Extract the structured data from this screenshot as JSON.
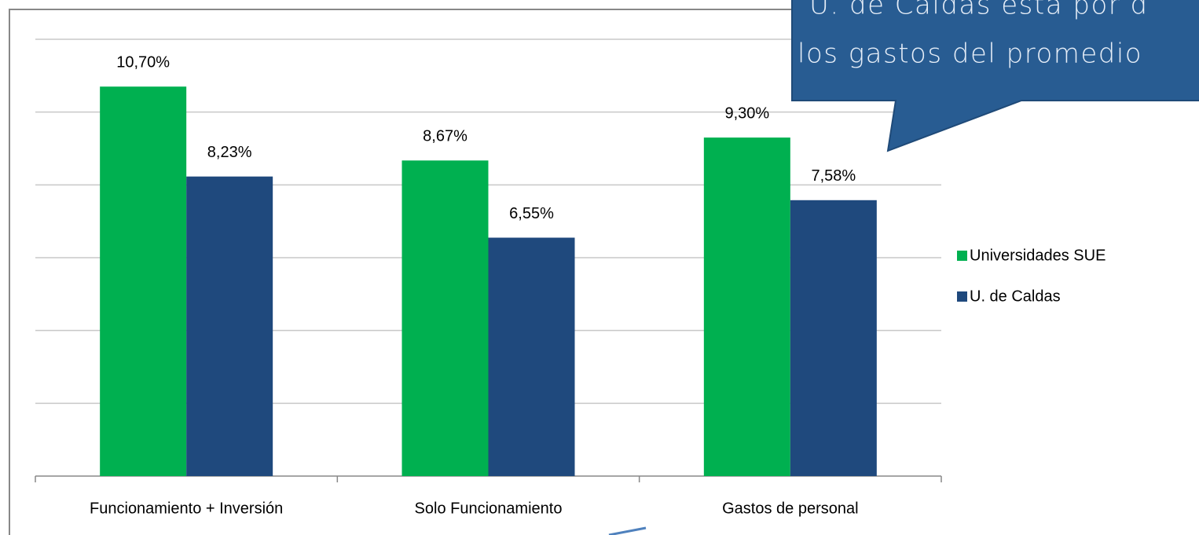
{
  "chart_data": {
    "type": "bar",
    "categories": [
      "Funcionamiento + Inversión",
      "Solo Funcionamiento",
      "Gastos de personal"
    ],
    "series": [
      {
        "name": "Universidades SUE",
        "color": "#00b050",
        "values": [
          10.7,
          8.67,
          9.3
        ],
        "value_labels": [
          "10,70%",
          "8,67%",
          "9,30%"
        ]
      },
      {
        "name": "U. de Caldas",
        "color": "#1f497d",
        "values": [
          8.23,
          6.55,
          7.58
        ],
        "value_labels": [
          "8,23%",
          "6,55%",
          "7,58%"
        ]
      }
    ],
    "ylim": [
      0,
      12
    ],
    "yticks": [
      0,
      2,
      4,
      6,
      8,
      10,
      12
    ],
    "grid": true,
    "legend": "right",
    "annotations": [
      "U. de Caldas está por d",
      "los gastos del promedio"
    ]
  }
}
